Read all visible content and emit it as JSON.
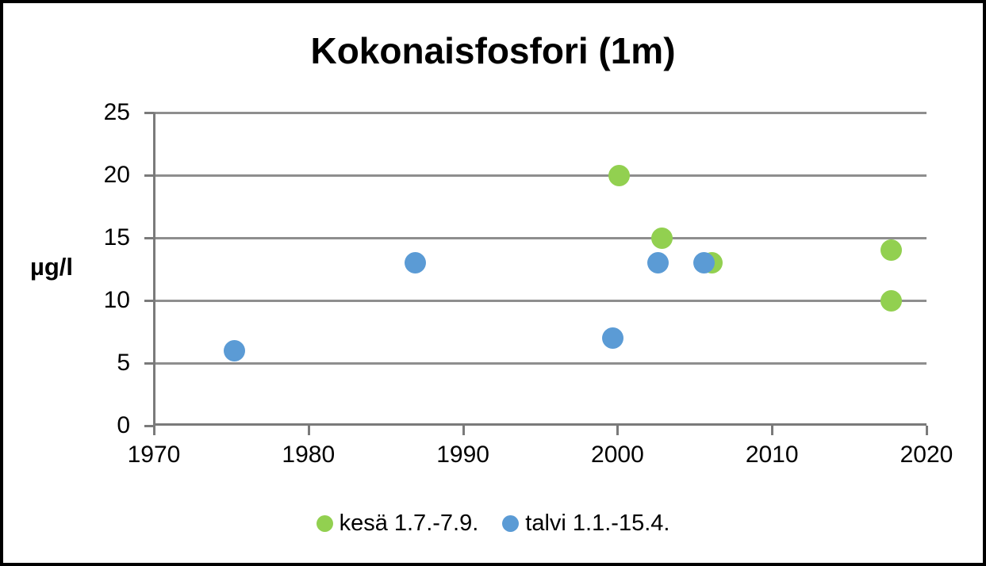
{
  "chart_data": {
    "type": "scatter",
    "title": "Kokonaisfosfori (1m)",
    "ylabel": "µg/l",
    "xlabel": "",
    "xlim": [
      1970,
      2020
    ],
    "ylim": [
      0,
      25
    ],
    "xticks": [
      1970,
      1980,
      1990,
      2000,
      2010,
      2020
    ],
    "yticks": [
      0,
      5,
      10,
      15,
      20,
      25
    ],
    "grid": true,
    "legend_position": "bottom",
    "series": [
      {
        "name": "kesä 1.7.-7.9.",
        "key": "kesa",
        "color": "#92d050",
        "points": [
          {
            "x": 2000.1,
            "y": 20
          },
          {
            "x": 2002.9,
            "y": 15
          },
          {
            "x": 2006.1,
            "y": 13
          },
          {
            "x": 2017.7,
            "y": 14
          },
          {
            "x": 2017.7,
            "y": 10
          }
        ]
      },
      {
        "name": "talvi 1.1.-15.4.",
        "key": "talvi",
        "color": "#5b9bd5",
        "points": [
          {
            "x": 1975.2,
            "y": 6
          },
          {
            "x": 1986.9,
            "y": 13
          },
          {
            "x": 1999.7,
            "y": 7
          },
          {
            "x": 2002.6,
            "y": 13
          },
          {
            "x": 2005.6,
            "y": 13
          }
        ]
      }
    ],
    "colors": {
      "axis": "#7a7a7a",
      "grid": "#8e8e8e",
      "text": "#000000",
      "frame_border": "#000000"
    }
  }
}
